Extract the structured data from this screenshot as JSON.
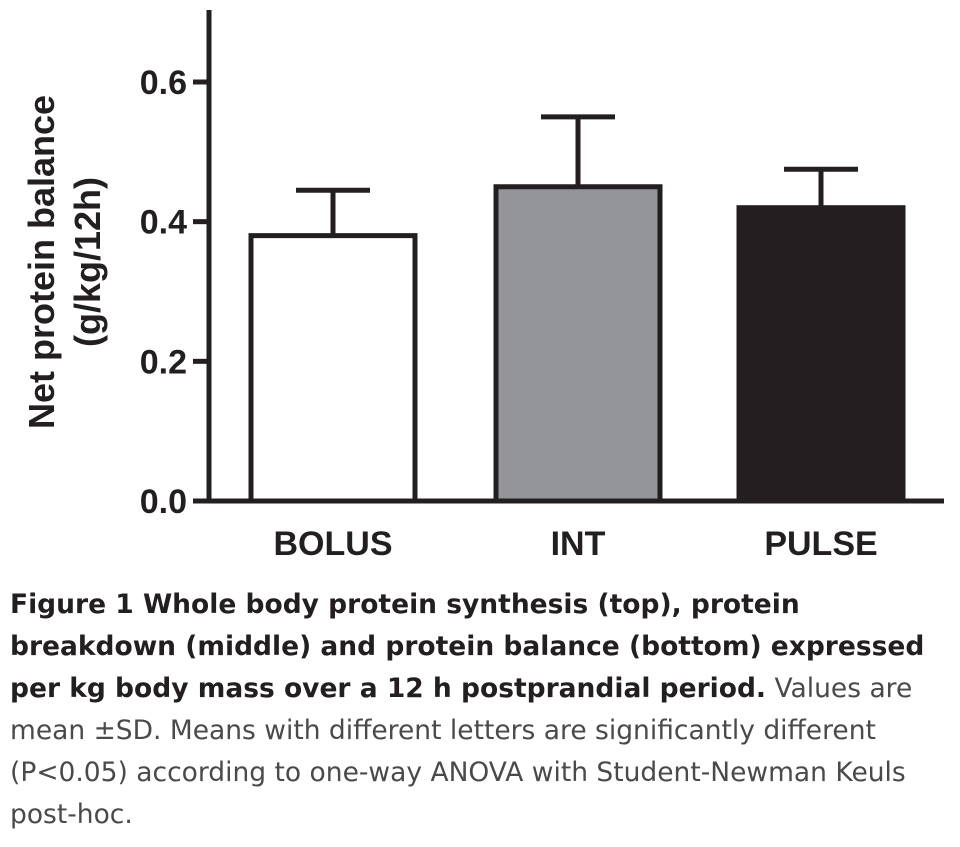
{
  "chart_data": {
    "type": "bar",
    "categories": [
      "BOLUS",
      "INT",
      "PULSE"
    ],
    "values": [
      0.38,
      0.45,
      0.42
    ],
    "errors": [
      0.065,
      0.1,
      0.055
    ],
    "ylabel_line1": "Net protein balance",
    "ylabel_line2": "(g/kg/12h)",
    "ylim": [
      0,
      0.7
    ],
    "yticks": [
      "0.0",
      "0.2",
      "0.4",
      "0.6"
    ],
    "ytick_values": [
      0,
      0.2,
      0.4,
      0.6
    ],
    "grid": false,
    "bar_colors": [
      "#ffffff",
      "#939598",
      "#231f20"
    ],
    "stroke_color": "#231f20"
  },
  "caption": {
    "title": "Figure 1 Whole body protein synthesis (top), protein breakdown (middle) and protein balance (bottom) expressed per kg body mass over a 12 h postprandial period.",
    "text": " Values are mean ±SD. Means with different letters are significantly different (P<0.05) according to one-way ANOVA with Student-Newman Keuls post-hoc."
  }
}
